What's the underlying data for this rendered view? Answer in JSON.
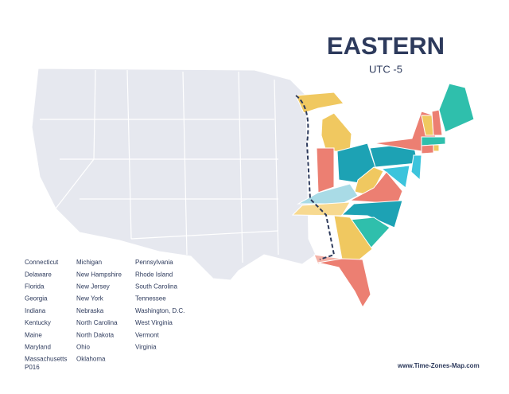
{
  "title": "EASTERN",
  "subtitle": "UTC -5",
  "states": [
    [
      "Connecticut",
      "Delaware",
      "Florida",
      "Georgia",
      "Indiana",
      "Kentucky",
      "Maine",
      "Maryland",
      "Massachusetts"
    ],
    [
      "Michigan",
      "New Hampshire",
      "New Jersey",
      "New York",
      "Nebraska",
      "North Carolina",
      "North Dakota",
      "Ohio",
      "Oklahoma"
    ],
    [
      "Pennsylvania",
      "Rhode Island",
      "South Carolina",
      "Tennessee",
      "Washington, D.C.",
      "West Virginia",
      "Vermont",
      "Virginia"
    ]
  ],
  "code": "P016",
  "website": "www.Time-Zones-Map.com"
}
